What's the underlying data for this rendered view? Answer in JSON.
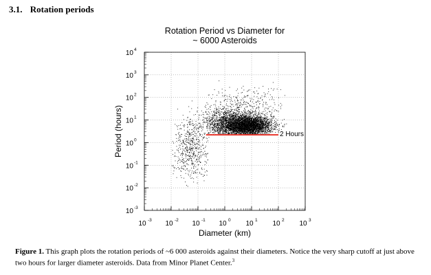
{
  "section": {
    "number": "3.1.",
    "title": "Rotation periods"
  },
  "caption": {
    "label": "Figure 1.",
    "text": "This graph plots the rotation periods of ~6 000 asteroids against their diameters. Notice the very sharp cutoff at just above two hours for larger diameter asteroids. Data from Minor Planet Center.",
    "ref": "3"
  },
  "chart_data": {
    "type": "scatter",
    "title": [
      "Rotation Period vs Diameter for",
      "~ 6000 Asteroids"
    ],
    "xlabel": "Diameter (km)",
    "ylabel": "Period (hours)",
    "x_scale": "log",
    "y_scale": "log",
    "xlim": [
      0.001,
      1000
    ],
    "ylim": [
      0.001,
      10000
    ],
    "x_ticks": [
      {
        "base": "10",
        "exp": "-3",
        "value": 0.001
      },
      {
        "base": "10",
        "exp": "-2",
        "value": 0.01
      },
      {
        "base": "10",
        "exp": "-1",
        "value": 0.1
      },
      {
        "base": "10",
        "exp": "0",
        "value": 1
      },
      {
        "base": "10",
        "exp": "1",
        "value": 10
      },
      {
        "base": "10",
        "exp": "2",
        "value": 100
      },
      {
        "base": "10",
        "exp": "3",
        "value": 1000
      }
    ],
    "y_ticks": [
      {
        "base": "10",
        "exp": "-3",
        "value": 0.001
      },
      {
        "base": "10",
        "exp": "-2",
        "value": 0.01
      },
      {
        "base": "10",
        "exp": "-1",
        "value": 0.1
      },
      {
        "base": "10",
        "exp": "0",
        "value": 1
      },
      {
        "base": "10",
        "exp": "1",
        "value": 10
      },
      {
        "base": "10",
        "exp": "2",
        "value": 100
      },
      {
        "base": "10",
        "exp": "3",
        "value": 1000
      },
      {
        "base": "10",
        "exp": "4",
        "value": 10000
      }
    ],
    "grid": true,
    "series": [
      {
        "point_count_approx": 6000,
        "color": "#000000",
        "clusters": [
          {
            "log_x_center": 0.85,
            "log_y_center": 0.75,
            "log_x_sd": 0.45,
            "log_y_sd": 0.22,
            "weight": 0.62
          },
          {
            "log_x_center": 0.1,
            "log_y_center": 0.85,
            "log_x_sd": 0.45,
            "log_y_sd": 0.35,
            "weight": 0.22
          },
          {
            "log_x_center": -1.3,
            "log_y_center": -0.2,
            "log_x_sd": 0.35,
            "log_y_sd": 0.7,
            "weight": 0.1
          },
          {
            "log_x_center": 0.8,
            "log_y_center": 1.6,
            "log_x_sd": 0.7,
            "log_y_sd": 0.45,
            "weight": 0.06
          }
        ],
        "min_period_hours_for_large": 2.2
      }
    ],
    "reference_line": {
      "label": "2 Hours",
      "y": 2.2,
      "x_start": 0.2,
      "x_end": 100,
      "color": "#e8352b"
    }
  }
}
